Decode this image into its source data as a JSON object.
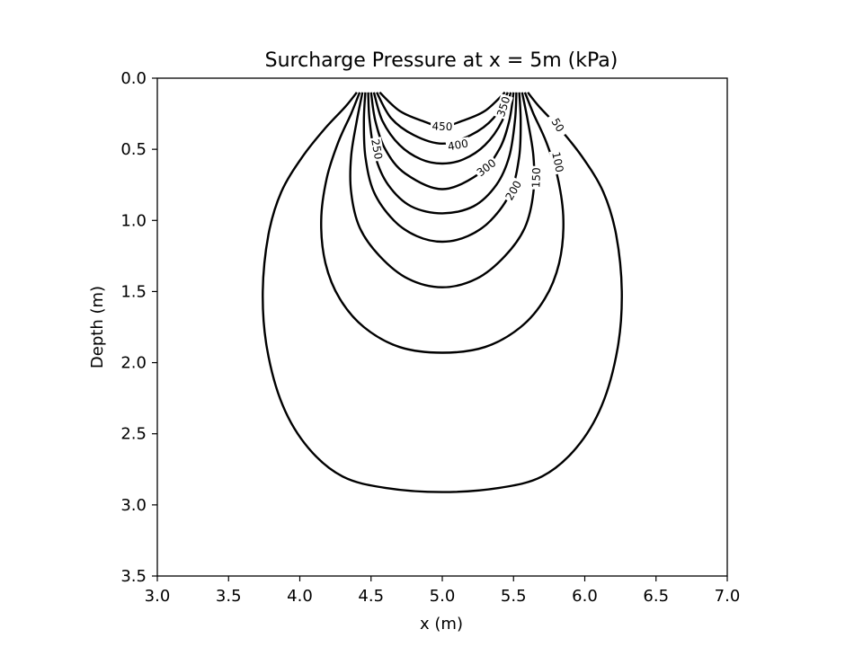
{
  "chart_data": {
    "type": "contour",
    "title": "Surcharge Pressure at x = 5m (kPa)",
    "xlabel": "x (m)",
    "ylabel": "Depth (m)",
    "xlim": [
      3.0,
      7.0
    ],
    "ylim": [
      3.5,
      0.0
    ],
    "y_inverted": true,
    "grid": false,
    "xticks": [
      "3.0",
      "3.5",
      "4.0",
      "4.5",
      "5.0",
      "5.5",
      "6.0",
      "6.5",
      "7.0"
    ],
    "yticks": [
      "0.0",
      "0.5",
      "1.0",
      "1.5",
      "2.0",
      "2.5",
      "3.0",
      "3.5"
    ],
    "line_color": "#000000",
    "levels": [
      {
        "level": 50,
        "label": "50",
        "label_x": 5.81,
        "label_y": 0.33,
        "points": [
          [
            4.4,
            0.1
          ],
          [
            4.32,
            0.2
          ],
          [
            4.18,
            0.35
          ],
          [
            4.02,
            0.55
          ],
          [
            3.87,
            0.8
          ],
          [
            3.78,
            1.1
          ],
          [
            3.74,
            1.5
          ],
          [
            3.77,
            1.9
          ],
          [
            3.88,
            2.3
          ],
          [
            4.06,
            2.6
          ],
          [
            4.3,
            2.8
          ],
          [
            4.6,
            2.88
          ],
          [
            5.0,
            2.91
          ],
          [
            5.4,
            2.88
          ],
          [
            5.7,
            2.8
          ],
          [
            5.94,
            2.6
          ],
          [
            6.12,
            2.3
          ],
          [
            6.23,
            1.9
          ],
          [
            6.26,
            1.5
          ],
          [
            6.22,
            1.1
          ],
          [
            6.13,
            0.8
          ],
          [
            5.98,
            0.55
          ],
          [
            5.82,
            0.35
          ],
          [
            5.68,
            0.2
          ],
          [
            5.6,
            0.1
          ]
        ]
      },
      {
        "level": 100,
        "label": "100",
        "label_x": 5.81,
        "label_y": 0.59,
        "points": [
          [
            4.42,
            0.1
          ],
          [
            4.36,
            0.25
          ],
          [
            4.27,
            0.45
          ],
          [
            4.19,
            0.7
          ],
          [
            4.15,
            1.0
          ],
          [
            4.18,
            1.3
          ],
          [
            4.28,
            1.55
          ],
          [
            4.45,
            1.75
          ],
          [
            4.7,
            1.89
          ],
          [
            5.0,
            1.93
          ],
          [
            5.3,
            1.89
          ],
          [
            5.55,
            1.75
          ],
          [
            5.72,
            1.55
          ],
          [
            5.82,
            1.3
          ],
          [
            5.85,
            1.0
          ],
          [
            5.81,
            0.7
          ],
          [
            5.73,
            0.45
          ],
          [
            5.64,
            0.25
          ],
          [
            5.58,
            0.1
          ]
        ]
      },
      {
        "level": 150,
        "label": "150",
        "label_x": 5.66,
        "label_y": 0.7,
        "points": [
          [
            4.44,
            0.1
          ],
          [
            4.4,
            0.3
          ],
          [
            4.36,
            0.55
          ],
          [
            4.36,
            0.8
          ],
          [
            4.42,
            1.05
          ],
          [
            4.56,
            1.25
          ],
          [
            4.76,
            1.41
          ],
          [
            5.0,
            1.47
          ],
          [
            5.24,
            1.41
          ],
          [
            5.44,
            1.25
          ],
          [
            5.58,
            1.05
          ],
          [
            5.64,
            0.8
          ],
          [
            5.64,
            0.55
          ],
          [
            5.6,
            0.3
          ],
          [
            5.56,
            0.1
          ]
        ]
      },
      {
        "level": 200,
        "label": "200",
        "label_x": 5.5,
        "label_y": 0.79,
        "points": [
          [
            4.46,
            0.1
          ],
          [
            4.45,
            0.3
          ],
          [
            4.46,
            0.55
          ],
          [
            4.52,
            0.8
          ],
          [
            4.66,
            1.0
          ],
          [
            4.82,
            1.11
          ],
          [
            5.0,
            1.15
          ],
          [
            5.18,
            1.11
          ],
          [
            5.34,
            1.0
          ],
          [
            5.48,
            0.8
          ],
          [
            5.54,
            0.55
          ],
          [
            5.55,
            0.3
          ],
          [
            5.54,
            0.1
          ]
        ]
      },
      {
        "level": 250,
        "label": "250",
        "label_x": 4.54,
        "label_y": 0.5,
        "points": [
          [
            4.48,
            0.1
          ],
          [
            4.49,
            0.3
          ],
          [
            4.53,
            0.55
          ],
          [
            4.62,
            0.75
          ],
          [
            4.78,
            0.9
          ],
          [
            5.0,
            0.95
          ],
          [
            5.22,
            0.9
          ],
          [
            5.38,
            0.75
          ],
          [
            5.47,
            0.55
          ],
          [
            5.51,
            0.3
          ],
          [
            5.52,
            0.1
          ]
        ]
      },
      {
        "level": 300,
        "label": "300",
        "label_x": 5.31,
        "label_y": 0.63,
        "points": [
          [
            4.5,
            0.1
          ],
          [
            4.53,
            0.3
          ],
          [
            4.6,
            0.5
          ],
          [
            4.74,
            0.67
          ],
          [
            5.0,
            0.78
          ],
          [
            5.26,
            0.67
          ],
          [
            5.4,
            0.5
          ],
          [
            5.47,
            0.3
          ],
          [
            5.5,
            0.1
          ]
        ]
      },
      {
        "level": 350,
        "label": "350",
        "label_x": 5.43,
        "label_y": 0.2,
        "points": [
          [
            4.52,
            0.1
          ],
          [
            4.58,
            0.3
          ],
          [
            4.7,
            0.47
          ],
          [
            4.85,
            0.57
          ],
          [
            5.0,
            0.6
          ],
          [
            5.15,
            0.57
          ],
          [
            5.3,
            0.47
          ],
          [
            5.42,
            0.3
          ],
          [
            5.48,
            0.1
          ]
        ]
      },
      {
        "level": 400,
        "label": "400",
        "label_x": 5.11,
        "label_y": 0.47,
        "points": [
          [
            4.54,
            0.1
          ],
          [
            4.64,
            0.28
          ],
          [
            4.8,
            0.4
          ],
          [
            5.0,
            0.46
          ],
          [
            5.2,
            0.4
          ],
          [
            5.36,
            0.28
          ],
          [
            5.46,
            0.1
          ]
        ]
      },
      {
        "level": 450,
        "label": "450",
        "label_x": 5.0,
        "label_y": 0.34,
        "points": [
          [
            4.56,
            0.1
          ],
          [
            4.7,
            0.23
          ],
          [
            4.86,
            0.3
          ],
          [
            5.0,
            0.34
          ],
          [
            5.14,
            0.3
          ],
          [
            5.3,
            0.23
          ],
          [
            5.44,
            0.1
          ]
        ]
      }
    ]
  }
}
